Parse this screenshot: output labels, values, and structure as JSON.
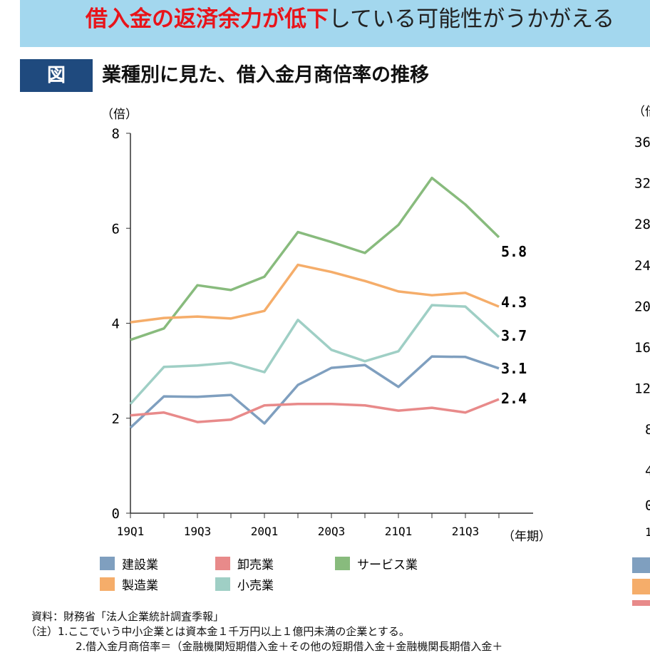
{
  "banner": {
    "highlight": "借入金の返済余力が低下",
    "rest": "している可能性がうかがえる"
  },
  "figure": {
    "label": "図",
    "title": "業種別に見た、借入金月商倍率の推移"
  },
  "colors": {
    "banner_bg": "#a3d7ee",
    "highlight": "#e8141a",
    "fig_label_bg": "#1f4a7e"
  },
  "chart_data": {
    "type": "line",
    "ylabel": "（倍）",
    "xlabel": "（年期）",
    "ylim": [
      0,
      8
    ],
    "yticks": [
      0,
      2,
      4,
      6,
      8
    ],
    "x": [
      "19Q1",
      "19Q2",
      "19Q3",
      "19Q4",
      "20Q1",
      "20Q2",
      "20Q3",
      "20Q4",
      "21Q1",
      "21Q2",
      "21Q3",
      "21Q4"
    ],
    "xtick_labels": [
      "19Q1",
      "",
      "19Q3",
      "",
      "20Q1",
      "",
      "20Q3",
      "",
      "21Q1",
      "",
      "21Q3",
      ""
    ],
    "grid": false,
    "legend_placement": "bottom",
    "series": [
      {
        "name": "建設業",
        "color": "#7f9fbf",
        "values": [
          1.8,
          2.46,
          2.45,
          2.49,
          1.89,
          2.7,
          3.06,
          3.12,
          2.66,
          3.3,
          3.29,
          3.05
        ],
        "end_label": "3.1"
      },
      {
        "name": "卸売業",
        "color": "#e88a8a",
        "values": [
          2.06,
          2.12,
          1.92,
          1.97,
          2.27,
          2.3,
          2.3,
          2.27,
          2.16,
          2.22,
          2.12,
          2.4
        ],
        "end_label": "2.4"
      },
      {
        "name": "サービス業",
        "color": "#88bb7d",
        "values": [
          3.65,
          3.89,
          4.8,
          4.7,
          4.98,
          5.92,
          5.71,
          5.48,
          6.07,
          7.06,
          6.5,
          5.81
        ],
        "end_label": "5.8"
      },
      {
        "name": "製造業",
        "color": "#f5ad6a",
        "values": [
          4.02,
          4.11,
          4.14,
          4.1,
          4.26,
          5.23,
          5.08,
          4.89,
          4.67,
          4.59,
          4.64,
          4.35
        ],
        "end_label": "4.3"
      },
      {
        "name": "小売業",
        "color": "#9fcfc5",
        "values": [
          2.3,
          3.08,
          3.11,
          3.17,
          2.97,
          4.07,
          3.44,
          3.2,
          3.41,
          4.38,
          4.35,
          3.71
        ],
        "end_label": "3.7"
      }
    ]
  },
  "chart2_partial": {
    "ylabel": "（倍",
    "yticks": [
      "36",
      "32",
      "28",
      "24",
      "20",
      "16",
      "12",
      "8",
      "4",
      "0"
    ],
    "xtick_first": "1",
    "legend_colors": [
      "#7f9fbf",
      "#f5ad6a",
      "#e88a8a"
    ]
  },
  "notes": {
    "source": "資料：財務省「法人企業統計調査季報」",
    "note1": "（注）1.ここでいう中小企業とは資本金１千万円以上１億円未満の企業とする。",
    "note2": "2.借入金月商倍率＝（金融機関短期借入金＋その他の短期借入金＋金融機関長期借入金＋"
  }
}
